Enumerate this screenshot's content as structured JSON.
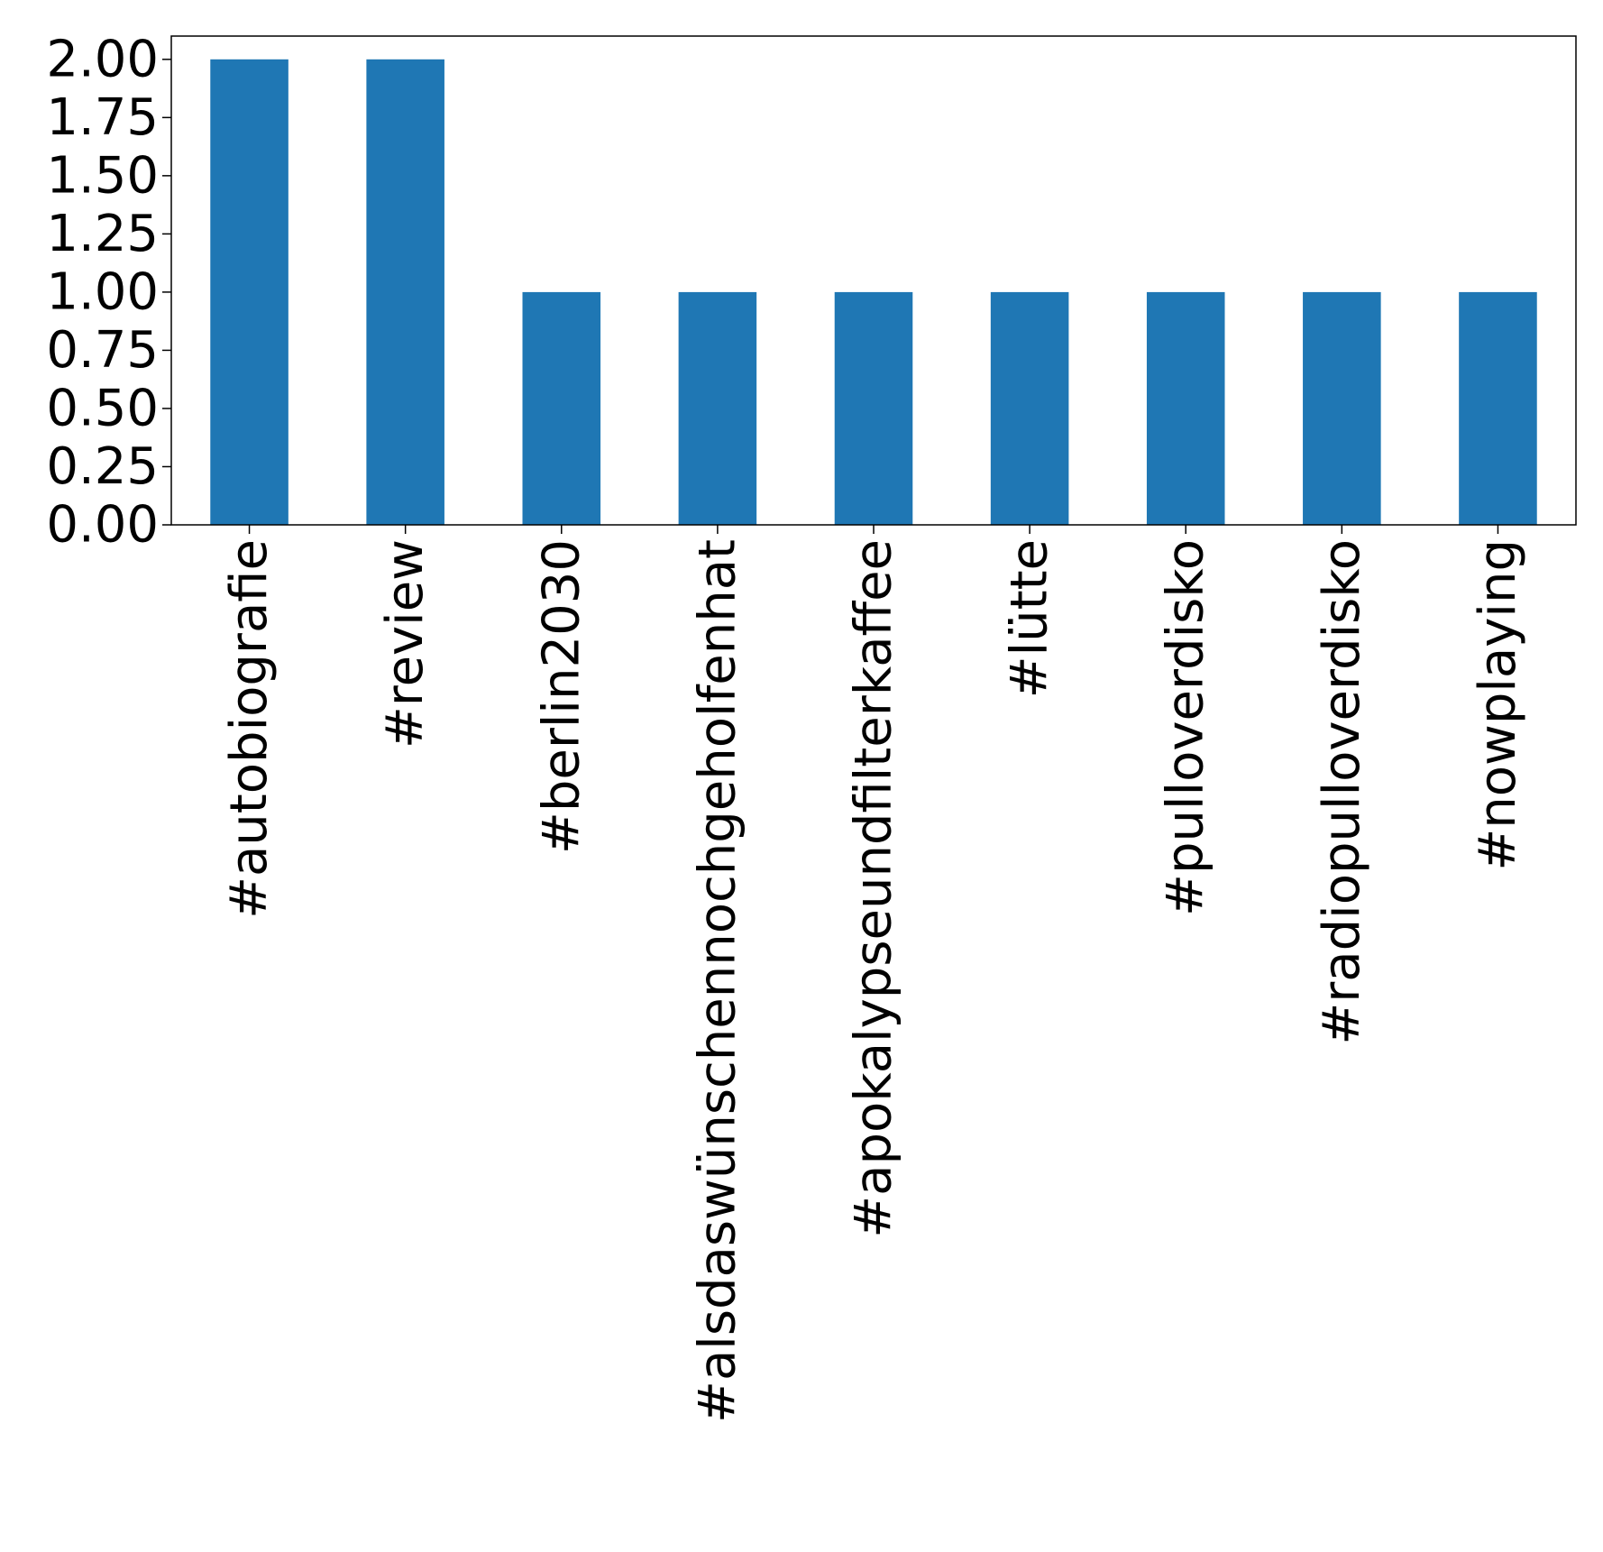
{
  "chart_data": {
    "type": "bar",
    "categories": [
      "#autobiografie",
      "#review",
      "#berlin2030",
      "#alsdaswünschennochgeholfenhat",
      "#apokalypseundfilterkaffee",
      "#lütte",
      "#pulloverdisko",
      "#radiopulloverdisko",
      "#nowplaying"
    ],
    "values": [
      2,
      2,
      1,
      1,
      1,
      1,
      1,
      1,
      1
    ],
    "ylim": [
      0,
      2.1
    ],
    "yticks": [
      "0.00",
      "0.25",
      "0.50",
      "0.75",
      "1.00",
      "1.25",
      "1.50",
      "1.75",
      "2.00"
    ],
    "bar_color": "#1f77b4",
    "grid": false,
    "legend": "none"
  }
}
